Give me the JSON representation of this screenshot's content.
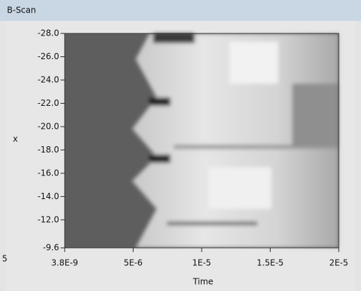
{
  "chart_data": {
    "type": "intensity",
    "title": "B-Scan",
    "xlabel": "Time",
    "ylabel": "x",
    "xlim": [
      3.8e-09,
      2e-05
    ],
    "xticks": [
      {
        "value": 3.8e-09,
        "label": "3.8E-9"
      },
      {
        "value": 5e-06,
        "label": "5E-6"
      },
      {
        "value": 1e-05,
        "label": "1E-5"
      },
      {
        "value": 1.5e-05,
        "label": "1.5E-5"
      },
      {
        "value": 2e-05,
        "label": "2E-5"
      }
    ],
    "ylim": [
      -28,
      -9.6
    ],
    "yticks": [
      {
        "value": -28,
        "label": "-28.0"
      },
      {
        "value": -26,
        "label": "-26.0"
      },
      {
        "value": -24,
        "label": "-24.0"
      },
      {
        "value": -22,
        "label": "-22.0"
      },
      {
        "value": -20,
        "label": "-20.0"
      },
      {
        "value": -18,
        "label": "-18.0"
      },
      {
        "value": -16,
        "label": "-16.0"
      },
      {
        "value": -14,
        "label": "-14.0"
      },
      {
        "value": -12,
        "label": "-12.0"
      },
      {
        "value": -9.6,
        "label": "-9.6"
      }
    ],
    "left_edge_text": "5"
  }
}
